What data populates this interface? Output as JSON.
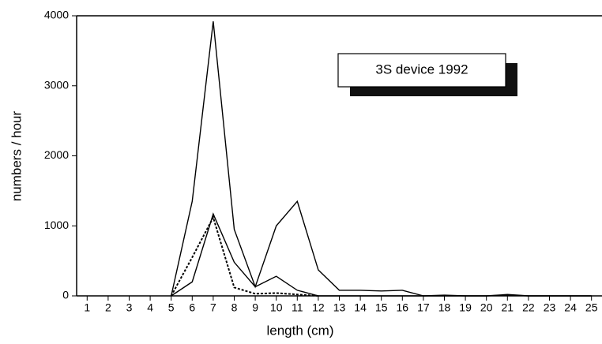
{
  "chart_data": {
    "type": "line",
    "annotations": [
      "3S device 1992"
    ],
    "xlabel": "length (cm)",
    "ylabel": "numbers / hour",
    "x": [
      1,
      2,
      3,
      4,
      5,
      6,
      7,
      8,
      9,
      10,
      11,
      12,
      13,
      14,
      15,
      16,
      17,
      18,
      19,
      20,
      21,
      22,
      23,
      24,
      25
    ],
    "series": [
      {
        "color": "#000000",
        "dashed": false,
        "values": [
          null,
          null,
          null,
          null,
          0,
          1350,
          3920,
          950,
          130,
          1000,
          1350,
          370,
          80,
          80,
          70,
          80,
          0,
          10,
          0,
          0,
          20,
          0,
          0,
          0,
          0
        ]
      },
      {
        "color": "#000000",
        "dashed": false,
        "values": [
          null,
          null,
          null,
          null,
          0,
          200,
          1170,
          480,
          130,
          280,
          80,
          0,
          0,
          0,
          0,
          0,
          0,
          0,
          0,
          0,
          10,
          0,
          0,
          0,
          0
        ]
      },
      {
        "color": "#000000",
        "dashed": true,
        "values": [
          null,
          null,
          null,
          null,
          0,
          550,
          1120,
          120,
          30,
          40,
          20,
          0,
          null,
          null,
          null,
          null,
          null,
          null,
          null,
          null,
          null,
          null,
          null,
          null,
          null
        ]
      }
    ],
    "xlim": [
      0.5,
      25.5
    ],
    "xticks": [
      1,
      2,
      3,
      4,
      5,
      6,
      7,
      8,
      9,
      10,
      11,
      12,
      13,
      14,
      15,
      16,
      17,
      18,
      19,
      20,
      21,
      22,
      23,
      24,
      25
    ],
    "ylim": [
      0,
      4000
    ],
    "yticks": [
      0,
      1000,
      2000,
      3000,
      4000
    ],
    "grid": false
  }
}
